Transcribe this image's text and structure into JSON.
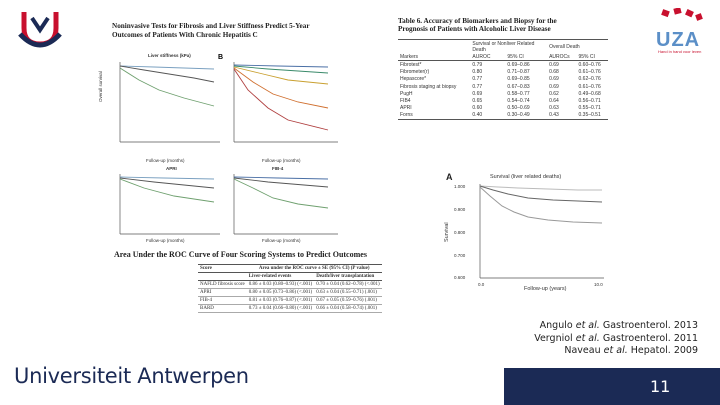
{
  "slide": {
    "page_number": "11",
    "university": "Universiteit Antwerpen",
    "uza_logo": "UZA",
    "uza_tagline": "Hand in hand voor leven",
    "colors": {
      "accent": "#c8102e",
      "navy": "#1b2a55",
      "uza_blue": "#5b8fc7"
    }
  },
  "fig_left": {
    "title_line1": "Noninvasive Tests for Fibrosis and Liver Stiffness Predict 5-Year",
    "title_line2": "Outcomes of Patients With Chronic Hepatitis C",
    "panel_a_title": "Liver stiffness (kPa)",
    "panel_b_label": "B",
    "panel_c_title": "APRI",
    "panel_d_title": "FIB-4",
    "xlabel": "Follow-up (months)",
    "ylabel": "Overall survival"
  },
  "table6": {
    "title_line1": "Table 6. Accuracy of Biomarkers and Biopsy for the",
    "title_line2": "Prognosis of Patients with Alcoholic Liver Disease",
    "group1": "Survival or Nonliver Related Death",
    "group2": "Overall Death",
    "columns": [
      "Markers",
      "AUROC",
      "95% CI",
      "AUROCs",
      "95% CI"
    ],
    "rows": [
      [
        "Fibrotest*",
        "0.79",
        "0.69–0.86",
        "0.69",
        "0.60–0.76"
      ],
      [
        "Fibrometer(r)",
        "0.80",
        "0.71–0.87",
        "0.68",
        "0.61–0.76"
      ],
      [
        "Hepascore*",
        "0.77",
        "0.69–0.85",
        "0.69",
        "0.62–0.76"
      ],
      [
        "Fibrosis staging at biopsy",
        "0.77",
        "0.67–0.83",
        "0.69",
        "0.61–0.76"
      ],
      [
        "PugH",
        "0.69",
        "0.58–0.77",
        "0.62",
        "0.49–0.68"
      ],
      [
        "FIB4",
        "0.65",
        "0.54–0.74",
        "0.64",
        "0.56–0.71"
      ],
      [
        "APRI",
        "0.60",
        "0.50–0.69",
        "0.63",
        "0.55–0.71"
      ],
      [
        "Forns",
        "0.40",
        "0.30–0.49",
        "0.43",
        "0.35–0.51"
      ]
    ]
  },
  "survival_fig": {
    "panel_label": "A",
    "title": "Survival (liver related deaths)",
    "y_ticks": [
      "1.000",
      "0.900",
      "0.800",
      "0.700",
      "0.600"
    ],
    "x_ticks": [
      "0.0",
      "10.0"
    ],
    "ylabel": "Survival",
    "xlabel": "Follow-up (years)"
  },
  "auc_table": {
    "title": "Area Under the ROC Curve of Four Scoring Systems to Predict Outcomes",
    "header_group": "Area under the ROC curve ± SE (95% CI) (P value)",
    "columns": [
      "Score",
      "Liver-related events",
      "Death/liver transplantation"
    ],
    "rows": [
      [
        "NAFLD fibrosis score",
        "0.86 ± 0.03 (0.80–0.93) (<.001)",
        "0.70 ± 0.04 (0.62–0.78) (<.001)"
      ],
      [
        "APRI",
        "0.80 ± 0.05 (0.73–0.86) (<.001)",
        "0.63 ± 0.04 (0.55–0.71) (.001)"
      ],
      [
        "FIB-4",
        "0.81 ± 0.03 (0.76–0.87) (<.001)",
        "0.67 ± 0.05 (0.59–0.76) (.001)"
      ],
      [
        "BARD",
        "0.73 ± 0.04 (0.66–0.80) (<.001)",
        "0.66 ± 0.04 (0.58–0.74) (.001)"
      ]
    ]
  },
  "citations": [
    {
      "author": "Angulo",
      "etal": "et al.",
      "ref": "Gastroenterol. 2013"
    },
    {
      "author": "Vergniol",
      "etal": "et al.",
      "ref": "Gastroenterol. 2011"
    },
    {
      "author": "Naveau",
      "etal": "et al.",
      "ref": "Hepatol. 2009"
    }
  ]
}
